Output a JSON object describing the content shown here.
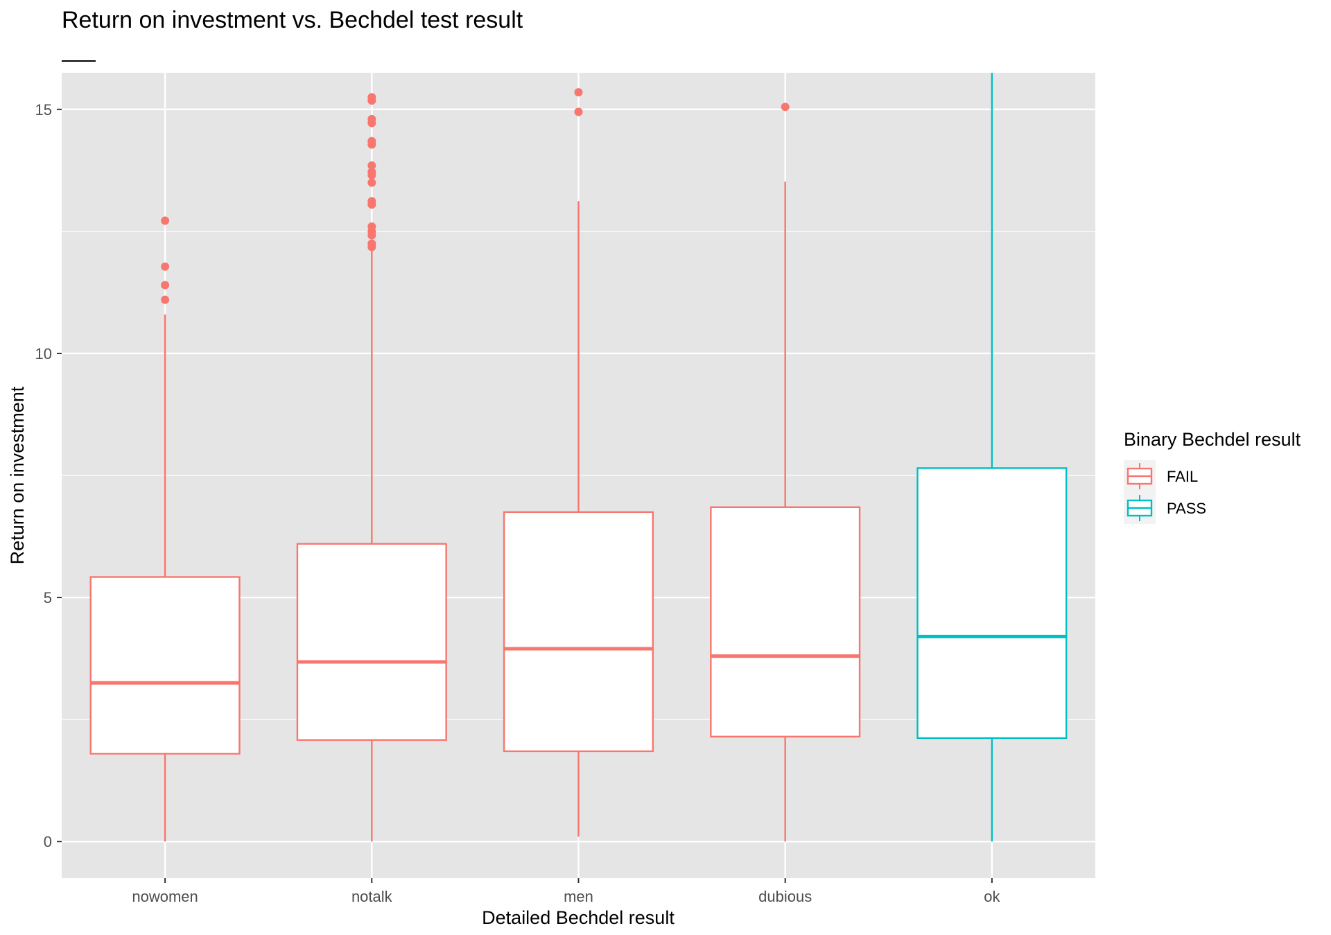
{
  "chart_data": {
    "type": "boxplot",
    "title": "Return on investment vs. Bechdel test result",
    "subtitle": "",
    "xlabel": "Detailed Bechdel result",
    "ylabel": "Return on investment",
    "ylim": [
      -0.75,
      15.75
    ],
    "yticks": [
      0,
      5,
      10,
      15
    ],
    "minor_yticks": [
      2.5,
      7.5,
      12.5
    ],
    "grid": true,
    "legend": {
      "title": "Binary Bechdel result",
      "position": "right",
      "entries": [
        {
          "label": "FAIL",
          "color": "#F8766D"
        },
        {
          "label": "PASS",
          "color": "#00BFC4"
        }
      ]
    },
    "categories": [
      "nowomen",
      "notalk",
      "men",
      "dubious",
      "ok"
    ],
    "boxes": [
      {
        "category": "nowomen",
        "group": "FAIL",
        "whisker_low": 0.0,
        "q1": 1.8,
        "median": 3.25,
        "q3": 5.42,
        "whisker_high": 10.8,
        "outliers": [
          11.1,
          11.4,
          11.78,
          12.72
        ]
      },
      {
        "category": "notalk",
        "group": "FAIL",
        "whisker_low": 0.0,
        "q1": 2.08,
        "median": 3.68,
        "q3": 6.1,
        "whisker_high": 12.1,
        "outliers": [
          12.18,
          12.25,
          12.42,
          12.5,
          12.6,
          13.05,
          13.12,
          13.5,
          13.65,
          13.72,
          13.85,
          14.28,
          14.35,
          14.72,
          14.8,
          15.18,
          15.25
        ]
      },
      {
        "category": "men",
        "group": "FAIL",
        "whisker_low": 0.1,
        "q1": 1.85,
        "median": 3.95,
        "q3": 6.75,
        "whisker_high": 13.12,
        "outliers": [
          14.95,
          15.35
        ]
      },
      {
        "category": "dubious",
        "group": "FAIL",
        "whisker_low": 0.0,
        "q1": 2.15,
        "median": 3.8,
        "q3": 6.85,
        "whisker_high": 13.52,
        "outliers": [
          15.05
        ]
      },
      {
        "category": "ok",
        "group": "PASS",
        "whisker_low": 0.0,
        "q1": 2.12,
        "median": 4.2,
        "q3": 7.65,
        "whisker_high": 15.75,
        "outliers": []
      }
    ],
    "colors": {
      "panel_bg": "#E5E5E5",
      "grid": "#FFFFFF",
      "fail": "#F8766D",
      "pass": "#00BFC4",
      "legend_key_bg": "#F2F2F2"
    }
  }
}
